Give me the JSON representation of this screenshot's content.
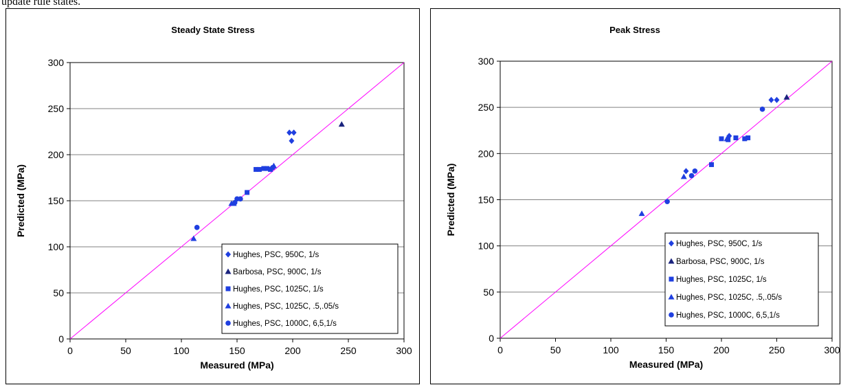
{
  "header": {
    "text": "update rule states."
  },
  "styles": {
    "marker_color": "#1f3fe0",
    "barbosa_color": "#1a237e",
    "diagonal_color": "#ff00ff",
    "grid_color": "#808080"
  },
  "chart_data": [
    {
      "type": "scatter",
      "title": "Steady State Stress",
      "xlabel": "Measured (MPa)",
      "ylabel": "Predicted (MPa)",
      "xlim": [
        0,
        300
      ],
      "ylim": [
        0,
        300
      ],
      "xticks": [
        0,
        50,
        100,
        150,
        200,
        250,
        300
      ],
      "yticks": [
        0,
        50,
        100,
        150,
        200,
        250,
        300
      ],
      "grid": "horizontal",
      "legend_position": "bottom-right",
      "reference_line": "y = x",
      "series": [
        {
          "name": "Hughes, PSC, 950C, 1/s",
          "marker": "diamond",
          "points": [
            [
              197,
              224
            ],
            [
              199,
              215
            ],
            [
              201,
              224
            ]
          ]
        },
        {
          "name": "Barbosa, PSC, 900C, 1/s",
          "marker": "triangle-dark",
          "points": [
            [
              244,
              233
            ]
          ]
        },
        {
          "name": "Hughes, PSC, 1025C, 1/s",
          "marker": "square",
          "points": [
            [
              159,
              159
            ],
            [
              167,
              184
            ],
            [
              170,
              184
            ],
            [
              174,
              185
            ],
            [
              177,
              185
            ],
            [
              180,
              184
            ]
          ]
        },
        {
          "name": "Hughes, PSC, 1025C, .5,.05/s",
          "marker": "triangle",
          "points": [
            [
              111,
              109
            ],
            [
              145,
              147
            ],
            [
              147,
              147
            ],
            [
              183,
              188
            ]
          ]
        },
        {
          "name": "Hughes, PSC, 1000C, 6,5,1/s",
          "marker": "circle",
          "points": [
            [
              114,
              121
            ],
            [
              148,
              148
            ],
            [
              150,
              152
            ],
            [
              153,
              152
            ],
            [
              182,
              186
            ]
          ]
        }
      ]
    },
    {
      "type": "scatter",
      "title": "Peak Stress",
      "xlabel": "Measured (MPa)",
      "ylabel": "Predicted (MPa)",
      "xlim": [
        0,
        300
      ],
      "ylim": [
        0,
        300
      ],
      "xticks": [
        0,
        50,
        100,
        150,
        200,
        250,
        300
      ],
      "yticks": [
        0,
        50,
        100,
        150,
        200,
        250,
        300
      ],
      "grid": "horizontal",
      "legend_position": "bottom-right",
      "reference_line": "y = x",
      "series": [
        {
          "name": "Hughes, PSC, 950C, 1/s",
          "marker": "diamond",
          "points": [
            [
              168,
              181
            ],
            [
              207,
              219
            ],
            [
              245,
              258
            ],
            [
              250,
              258
            ]
          ]
        },
        {
          "name": "Barbosa, PSC, 900C, 1/s",
          "marker": "triangle-dark",
          "points": [
            [
              259,
              261
            ]
          ]
        },
        {
          "name": "Hughes, PSC, 1025C, 1/s",
          "marker": "square",
          "points": [
            [
              191,
              188
            ],
            [
              200,
              216
            ],
            [
              206,
              215
            ],
            [
              213,
              217
            ],
            [
              221,
              216
            ],
            [
              224,
              217
            ]
          ]
        },
        {
          "name": "Hughes, PSC, 1025C, .5,.05/s",
          "marker": "triangle",
          "points": [
            [
              128,
              135
            ],
            [
              166,
              175
            ],
            [
              205,
              216
            ]
          ]
        },
        {
          "name": "Hughes, PSC, 1000C, 6,5,1/s",
          "marker": "circle",
          "points": [
            [
              151,
              148
            ],
            [
              173,
              176
            ],
            [
              176,
              181
            ],
            [
              237,
              248
            ]
          ]
        }
      ]
    }
  ]
}
